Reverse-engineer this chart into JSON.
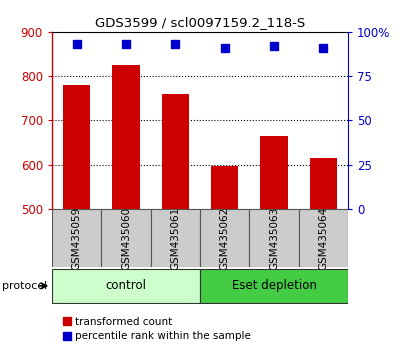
{
  "title": "GDS3599 / scl0097159.2_118-S",
  "samples": [
    "GSM435059",
    "GSM435060",
    "GSM435061",
    "GSM435062",
    "GSM435063",
    "GSM435064"
  ],
  "transformed_counts": [
    780,
    825,
    760,
    597,
    665,
    615
  ],
  "percentile_ranks": [
    93,
    93,
    93,
    91,
    92,
    91
  ],
  "ylim_left": [
    500,
    900
  ],
  "ylim_right": [
    0,
    100
  ],
  "yticks_left": [
    500,
    600,
    700,
    800,
    900
  ],
  "yticks_right": [
    0,
    25,
    50,
    75,
    100
  ],
  "yticklabels_right": [
    "0",
    "25",
    "50",
    "75",
    "100%"
  ],
  "bar_color": "#cc0000",
  "dot_color": "#0000cc",
  "control_color_light": "#ccffcc",
  "control_color_dark": "#44cc44",
  "groups": [
    {
      "label": "control",
      "indices": [
        0,
        1,
        2
      ],
      "color": "#ccffcc"
    },
    {
      "label": "Eset depletion",
      "indices": [
        3,
        4,
        5
      ],
      "color": "#44cc44"
    }
  ],
  "protocol_label": "protocol",
  "tick_area_color": "#cccccc",
  "legend_red_label": "transformed count",
  "legend_blue_label": "percentile rank within the sample",
  "grid_yticks": [
    600,
    700,
    800
  ]
}
